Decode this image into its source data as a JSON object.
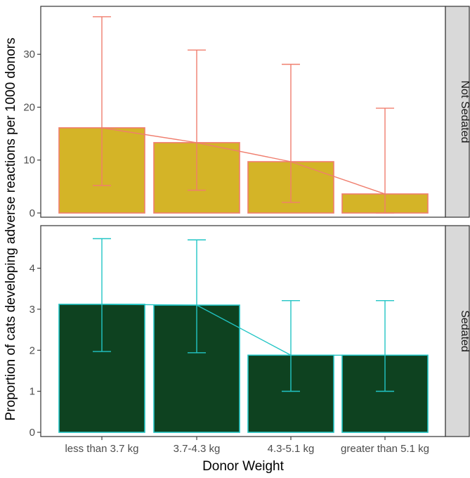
{
  "chart_data": {
    "type": "bar",
    "xlabel": "Donor Weight",
    "ylabel": "Proportion of cats developing adverse reactions per 1000 donors",
    "categories": [
      "less than 3.7 kg",
      "3.7-4.3 kg",
      "4.3-5.1 kg",
      "greater than 5.1 kg"
    ],
    "panels": [
      {
        "label": "Not Sedated",
        "fill_color": "#d4b427",
        "line_color": "#f07e6e",
        "ylim": [
          0,
          38
        ],
        "y_ticks": [
          0,
          10,
          20,
          30
        ],
        "values": [
          16.1,
          13.3,
          9.7,
          3.6
        ],
        "error_low": [
          5.2,
          4.3,
          2.0,
          0.0
        ],
        "error_high": [
          37.1,
          30.8,
          28.1,
          19.8
        ]
      },
      {
        "label": "Sedated",
        "fill_color": "#0e4220",
        "line_color": "#22c5c5",
        "ylim": [
          0,
          4.9
        ],
        "y_ticks": [
          0,
          1,
          2,
          3,
          4
        ],
        "values": [
          3.12,
          3.1,
          1.88,
          1.88
        ],
        "error_low": [
          1.97,
          1.94,
          1.0,
          1.0
        ],
        "error_high": [
          4.72,
          4.69,
          3.21,
          3.21
        ]
      }
    ]
  },
  "colors": {
    "strip_background": "#d9d9d9",
    "panel_border": "#333333"
  }
}
